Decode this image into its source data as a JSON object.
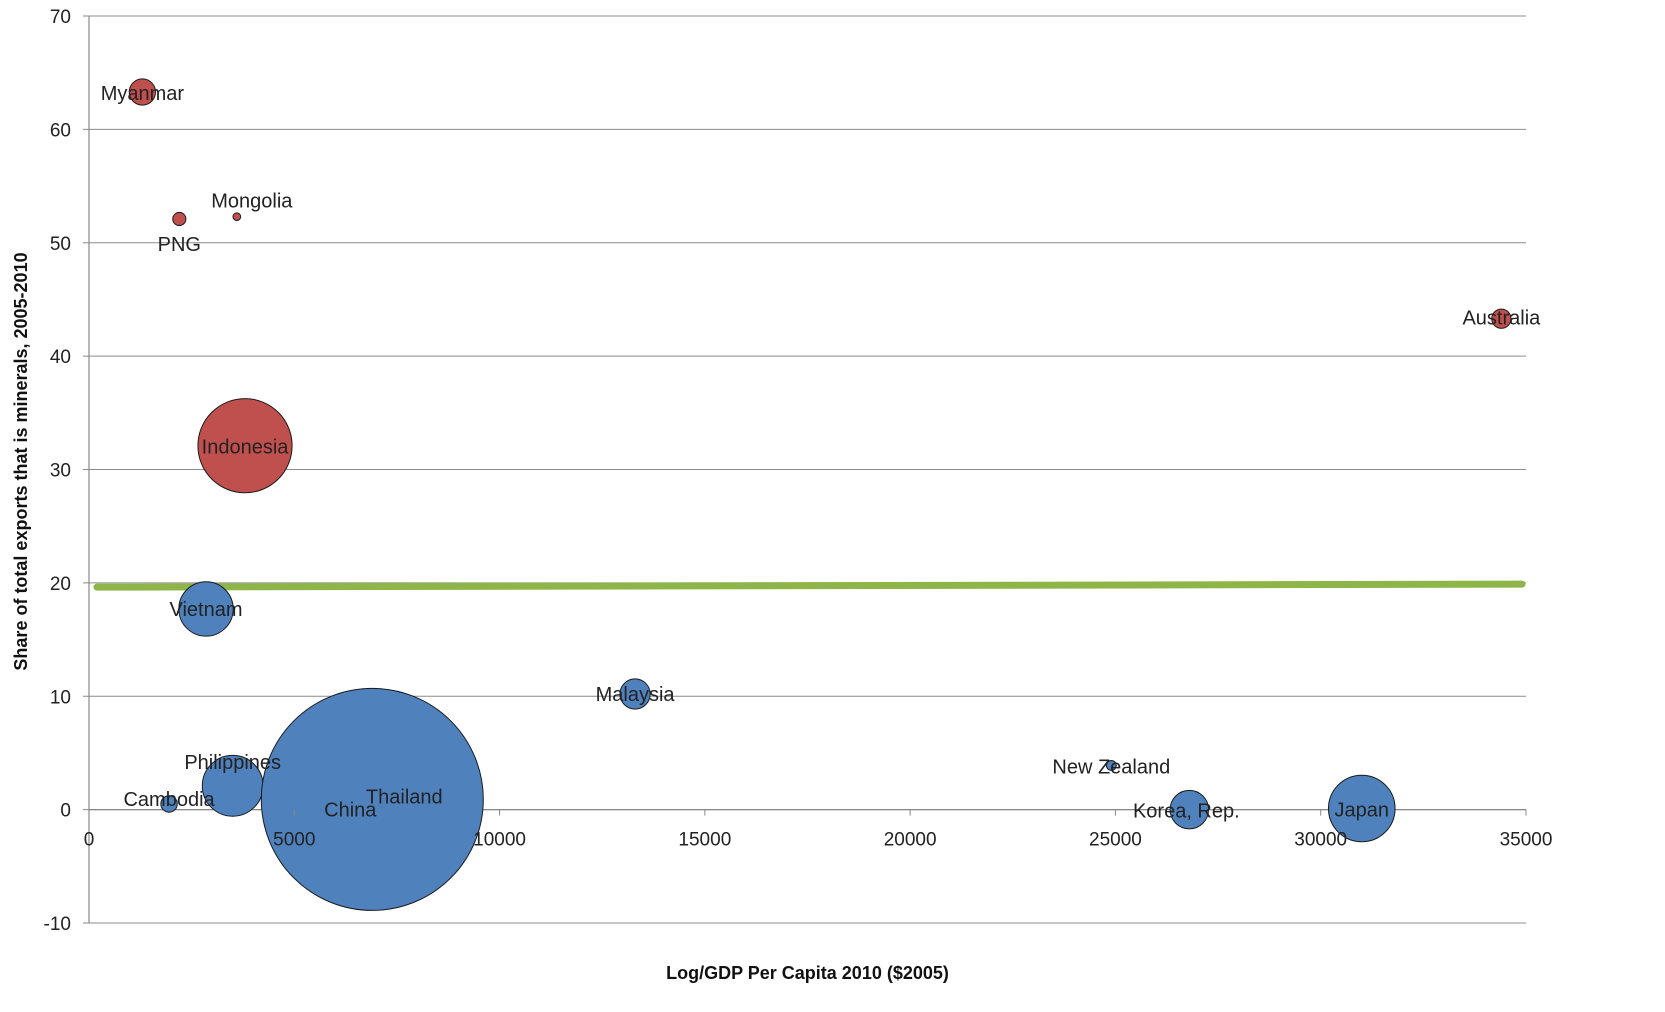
{
  "chart_data": {
    "type": "bubble",
    "xlabel": "Log/GDP Per Capita 2010 ($2005)",
    "ylabel": "Share of total exports that is minerals, 2005-2010",
    "xlim": [
      0,
      35000
    ],
    "ylim": [
      -10,
      70
    ],
    "x_ticks": [
      0,
      5000,
      10000,
      15000,
      20000,
      25000,
      30000,
      35000
    ],
    "y_ticks": [
      -10,
      0,
      10,
      20,
      30,
      40,
      50,
      60,
      70
    ],
    "grid": "horizontal",
    "threshold_line": {
      "y": 19.8,
      "color": "#8db548"
    },
    "colors": {
      "above": "#c0504d",
      "below": "#4f81bd"
    },
    "points": [
      {
        "label": "Myanmar",
        "x": 1300,
        "y": 63.3,
        "size": 1.4,
        "group": "above"
      },
      {
        "label": "PNG",
        "x": 2200,
        "y": 52.1,
        "size": 0.35,
        "group": "above"
      },
      {
        "label": "Mongolia",
        "x": 3600,
        "y": 52.3,
        "size": 0.12,
        "group": "above"
      },
      {
        "label": "Indonesia",
        "x": 3800,
        "y": 32.1,
        "size": 18.0,
        "group": "above"
      },
      {
        "label": "Australia",
        "x": 34400,
        "y": 43.3,
        "size": 0.75,
        "group": "above"
      },
      {
        "label": "Vietnam",
        "x": 2850,
        "y": 17.7,
        "size": 6.0,
        "group": "below"
      },
      {
        "label": "Cambodia",
        "x": 1950,
        "y": 0.5,
        "size": 0.55,
        "group": "below"
      },
      {
        "label": "Philippines",
        "x": 3500,
        "y": 2.1,
        "size": 7.5,
        "group": "below"
      },
      {
        "label": "China",
        "x": 6900,
        "y": 0.9,
        "size": 100,
        "group": "below"
      },
      {
        "label": "Thailand",
        "x": 6900,
        "y": 0.9,
        "size": 0,
        "group": "below"
      },
      {
        "label": "Malaysia",
        "x": 13300,
        "y": 10.2,
        "size": 1.85,
        "group": "below"
      },
      {
        "label": "New Zealand",
        "x": 24900,
        "y": 3.9,
        "size": 0.2,
        "group": "below"
      },
      {
        "label": "Korea, Rep.",
        "x": 26800,
        "y": 0.0,
        "size": 3.0,
        "group": "below"
      },
      {
        "label": "Japan",
        "x": 31000,
        "y": 0.1,
        "size": 9.0,
        "group": "below"
      }
    ]
  }
}
